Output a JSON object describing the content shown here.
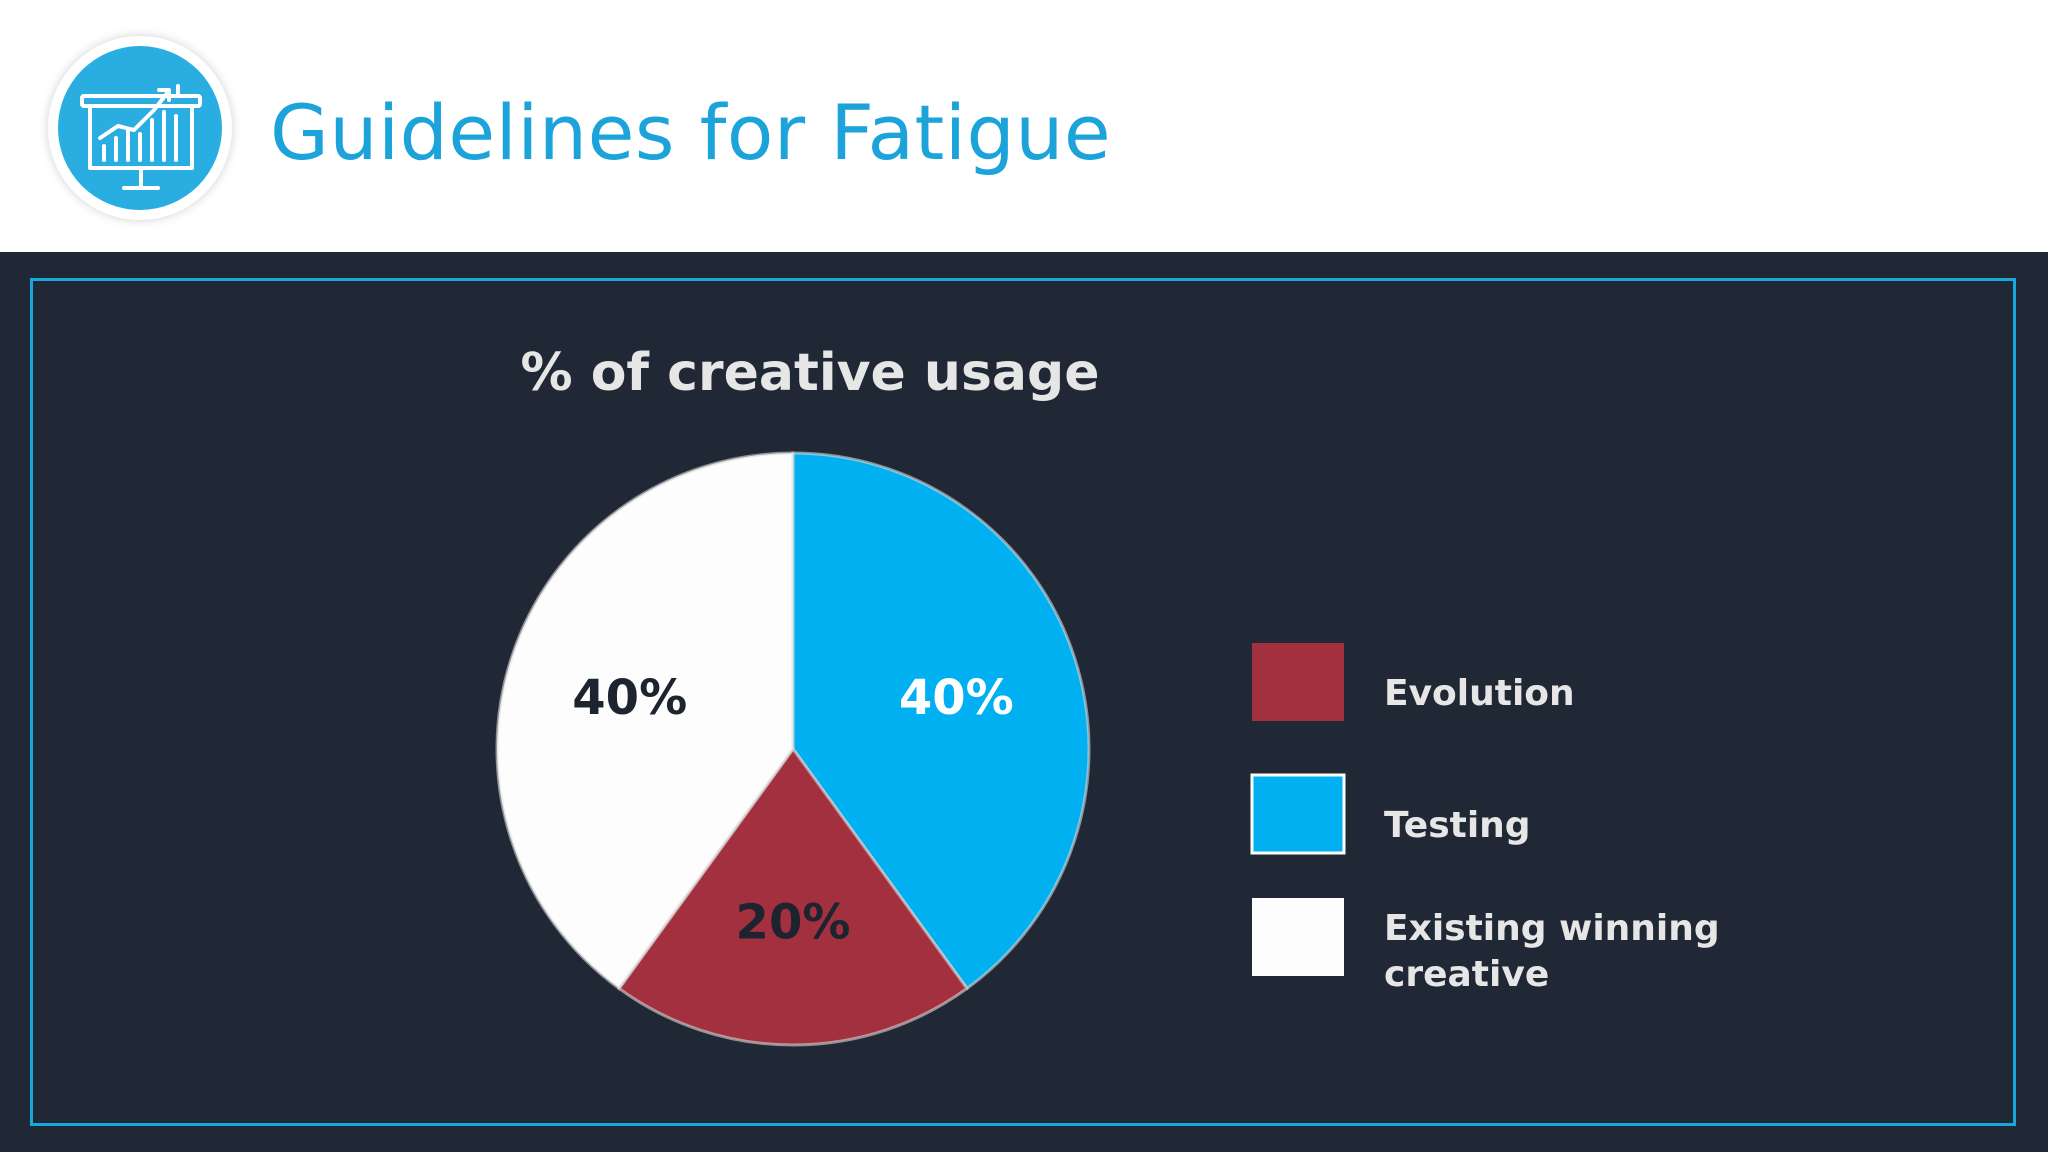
{
  "header": {
    "title": "Guidelines for Fatigue",
    "icon": "presentation-chart-icon"
  },
  "colors": {
    "title": "#1ca3d9",
    "panel_background": "#212835",
    "frame_border": "#19a8de",
    "evolution": "#a3303f",
    "testing": "#00b0f0",
    "existing": "#fdfdfd"
  },
  "chart_data": {
    "type": "pie",
    "title": "% of creative usage",
    "categories": [
      "Evolution",
      "Testing",
      "Existing winning creative"
    ],
    "values": [
      20,
      40,
      40
    ],
    "value_labels": [
      "20%",
      "40%",
      "40%"
    ],
    "colors": [
      "#a3303f",
      "#00b0f0",
      "#fdfdfd"
    ],
    "label_colors": [
      "#1e2330",
      "#ffffff",
      "#1e2330"
    ],
    "legend_placement": "right"
  }
}
